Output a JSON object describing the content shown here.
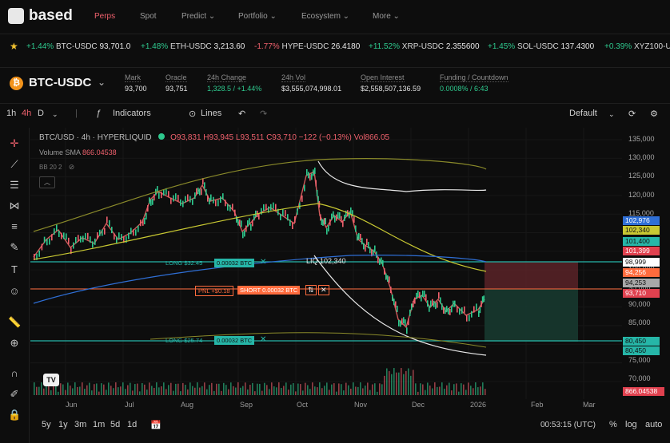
{
  "app": {
    "name": "based"
  },
  "nav": [
    "Perps",
    "Spot",
    "Predict ⌄",
    "Portfolio ⌄",
    "Ecosystem ⌄",
    "More ⌄"
  ],
  "tickers": [
    {
      "chg": "+1.44%",
      "sym": "BTC-USDC",
      "price": "93,701.0"
    },
    {
      "chg": "+1.48%",
      "sym": "ETH-USDC",
      "price": "3,213.60"
    },
    {
      "chg": "-1.77%",
      "sym": "HYPE-USDC",
      "price": "26.4180"
    },
    {
      "chg": "+11.52%",
      "sym": "XRP-USDC",
      "price": "2.355600"
    },
    {
      "chg": "+1.45%",
      "sym": "SOL-USDC",
      "price": "137.4300"
    },
    {
      "chg": "+0.39%",
      "sym": "XYZ100-U",
      "price": ""
    }
  ],
  "header": {
    "pair": "BTC-USDC",
    "stats": [
      {
        "label": "Mark",
        "value": "93,700"
      },
      {
        "label": "Oracle",
        "value": "93,751"
      },
      {
        "label": "24h Change",
        "value": "1,328.5 / +1.44%"
      },
      {
        "label": "24h Vol",
        "value": "$3,555,074,998.01"
      },
      {
        "label": "Open Interest",
        "value": "$2,558,507,136.59"
      },
      {
        "label": "Funding / Countdown",
        "value": "0.0008% / 6:43"
      }
    ]
  },
  "toolbar": {
    "tf1": "1h",
    "tf2": "4h",
    "tf3": "D",
    "indicators": "Indicators",
    "lines": "Lines",
    "layout": "Default"
  },
  "legend": {
    "title": "BTC/USD · 4h · HYPERLIQUID",
    "ohlc": "O93,831 H93,945 L93,511 C93,710 −122 (−0.13%) Vol866.05",
    "vol_sma_label": "Volume SMA",
    "vol_sma_value": "866.04538",
    "bb": "BB 20 2"
  },
  "y_axis": [
    "135,000",
    "130,000",
    "125,000",
    "120,000",
    "115,000",
    "110,000",
    "105,000",
    "100,000",
    "95,000",
    "90,000",
    "85,000",
    "80,000",
    "75,000",
    "70,000"
  ],
  "badges": [
    {
      "text": "102,976",
      "bg": "#2f6fd6",
      "fg": "#ffffff"
    },
    {
      "text": "102,340",
      "bg": "#c8c832",
      "fg": "#111111"
    },
    {
      "text": "101,400",
      "bg": "#26b6a8",
      "fg": "#111111"
    },
    {
      "text": "101,399",
      "bg": "#e0414f",
      "fg": "#ffffff"
    },
    {
      "text": "98,999",
      "bg": "#ffffff",
      "fg": "#111111"
    },
    {
      "text": "94,256",
      "bg": "#ff6b3d",
      "fg": "#ffffff"
    },
    {
      "text": "94,253",
      "bg": "#a8a8a8",
      "fg": "#111111"
    },
    {
      "text": "93,710",
      "bg": "#e0414f",
      "fg": "#ffffff"
    },
    {
      "text": "80,450",
      "bg": "#26b6a8",
      "fg": "#111111"
    },
    {
      "text": "80,450",
      "bg": "#26b6a8",
      "fg": "#111111"
    },
    {
      "text": "866.04538",
      "bg": "#e0414f",
      "fg": "#ffffff"
    }
  ],
  "x_axis": [
    "Jun",
    "Jul",
    "Aug",
    "Sep",
    "Oct",
    "Nov",
    "Dec",
    "2026",
    "Feb",
    "Mar"
  ],
  "orders": {
    "long1_label": "LONG $32.45",
    "long1_size": "0.00032 BTC",
    "liq": "LIQ 102,340",
    "pnl": "PNL +$0.18",
    "short": "SHORT 0.00032 BTC",
    "long2_label": "LONG $25.74",
    "long2_size": "0.00032 BTC"
  },
  "bottom": {
    "ranges": [
      "5y",
      "1y",
      "3m",
      "1m",
      "5d",
      "1d"
    ],
    "clock": "00:53:15 (UTC)",
    "pct": "%",
    "log": "log",
    "auto": "auto"
  },
  "colors": {
    "up": "#2ec98e",
    "down": "#f0616d",
    "accent": "#f0616d"
  }
}
